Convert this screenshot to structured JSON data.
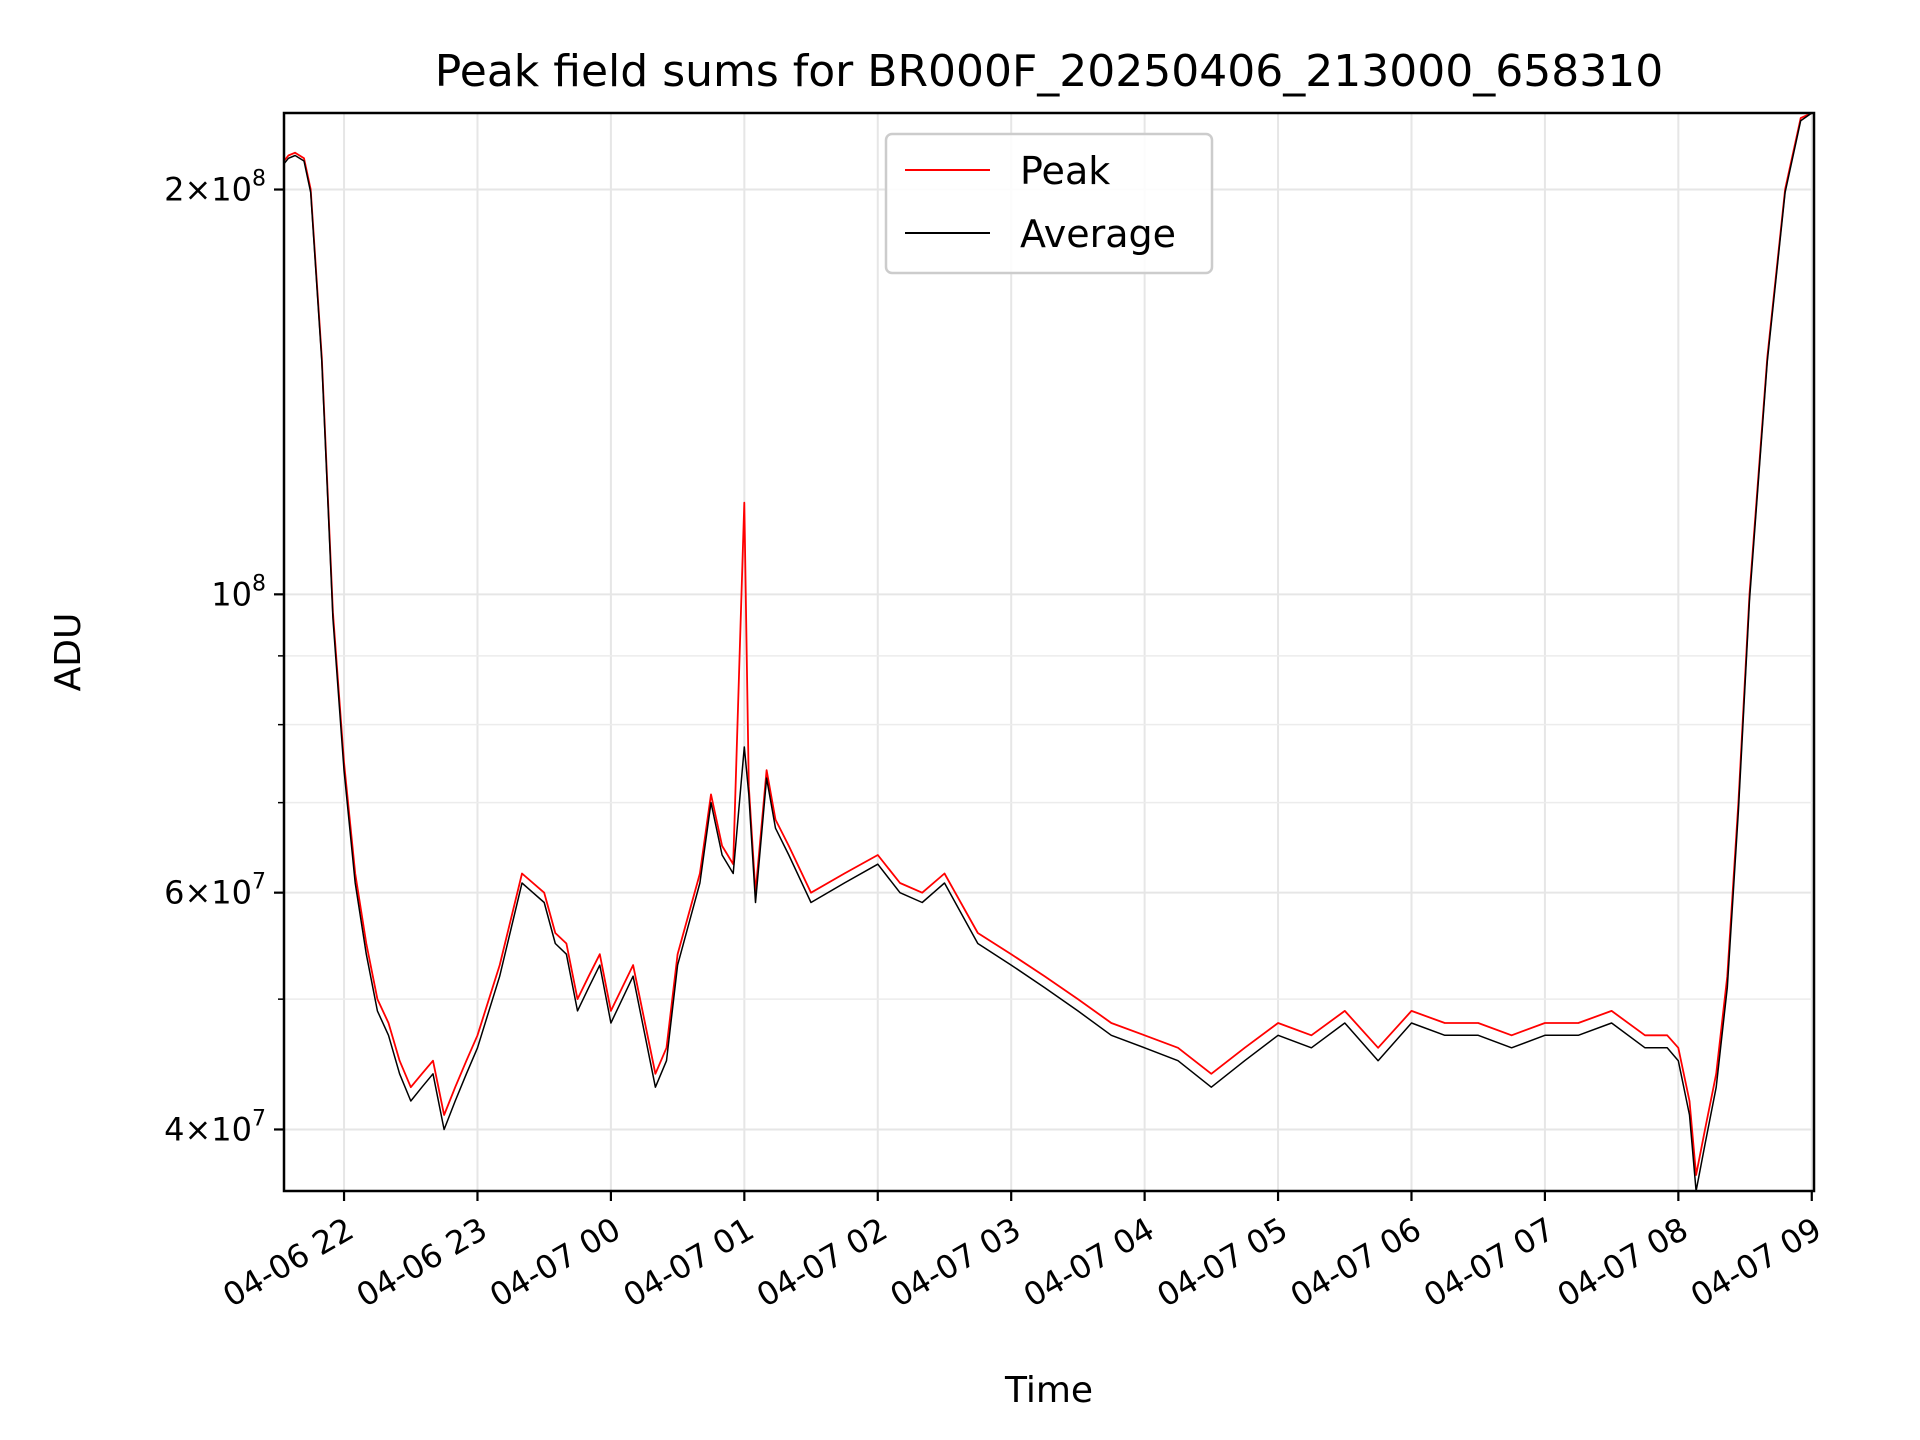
{
  "chart_data": {
    "type": "line",
    "title": "Peak field sums for BR000F_20250406_213000_658310",
    "xlabel": "Time",
    "ylabel": "ADU",
    "yscale": "log",
    "ylim": [
      36000000,
      228000000
    ],
    "xlim": [
      "04-06 21:33",
      "04-07 09:01"
    ],
    "grid": true,
    "legend_position": "top-center",
    "colors": {
      "Peak": "#ff0000",
      "Average": "#000000"
    },
    "x_ticks": [
      "04-06 22",
      "04-06 23",
      "04-07 00",
      "04-07 01",
      "04-07 02",
      "04-07 03",
      "04-07 04",
      "04-07 05",
      "04-07 06",
      "04-07 07",
      "04-07 08",
      "04-07 09"
    ],
    "y_ticks": [
      {
        "value": 40000000,
        "mantissa": "4",
        "exponent": "7"
      },
      {
        "value": 60000000,
        "mantissa": "6",
        "exponent": "7"
      },
      {
        "value": 100000000,
        "mantissa": "",
        "exponent": "8"
      },
      {
        "value": 200000000,
        "mantissa": "2",
        "exponent": "8"
      }
    ],
    "series": [
      {
        "name": "Peak",
        "x": [
          "04-06 21:33",
          "04-06 21:35",
          "04-06 21:38",
          "04-06 21:42",
          "04-06 21:45",
          "04-06 21:50",
          "04-06 21:55",
          "04-06 22:00",
          "04-06 22:05",
          "04-06 22:10",
          "04-06 22:15",
          "04-06 22:20",
          "04-06 22:25",
          "04-06 22:30",
          "04-06 22:35",
          "04-06 22:40",
          "04-06 22:45",
          "04-06 22:50",
          "04-06 22:55",
          "04-06 23:00",
          "04-06 23:10",
          "04-06 23:20",
          "04-06 23:30",
          "04-06 23:35",
          "04-06 23:40",
          "04-06 23:45",
          "04-06 23:50",
          "04-06 23:55",
          "04-07 00:00",
          "04-07 00:10",
          "04-07 00:20",
          "04-07 00:25",
          "04-07 00:30",
          "04-07 00:40",
          "04-07 00:45",
          "04-07 00:50",
          "04-07 00:55",
          "04-07 01:00",
          "04-07 01:02",
          "04-07 01:05",
          "04-07 01:10",
          "04-07 01:14",
          "04-07 01:20",
          "04-07 01:30",
          "04-07 01:45",
          "04-07 02:00",
          "04-07 02:10",
          "04-07 02:20",
          "04-07 02:30",
          "04-07 02:45",
          "04-07 03:00",
          "04-07 03:15",
          "04-07 03:30",
          "04-07 03:45",
          "04-07 04:00",
          "04-07 04:15",
          "04-07 04:30",
          "04-07 04:45",
          "04-07 05:00",
          "04-07 05:15",
          "04-07 05:30",
          "04-07 05:45",
          "04-07 06:00",
          "04-07 06:15",
          "04-07 06:30",
          "04-07 06:45",
          "04-07 07:00",
          "04-07 07:15",
          "04-07 07:30",
          "04-07 07:45",
          "04-07 07:55",
          "04-07 08:00",
          "04-07 08:05",
          "04-07 08:08",
          "04-07 08:12",
          "04-07 08:17",
          "04-07 08:22",
          "04-07 08:27",
          "04-07 08:32",
          "04-07 08:40",
          "04-07 08:48",
          "04-07 08:55",
          "04-07 09:00"
        ],
        "values": [
          210000000,
          212000000,
          213000000,
          211000000,
          200000000,
          150000000,
          97000000,
          75000000,
          62000000,
          55000000,
          50000000,
          48000000,
          45000000,
          43000000,
          44000000,
          45000000,
          41000000,
          43000000,
          45000000,
          47000000,
          53000000,
          62000000,
          60000000,
          56000000,
          55000000,
          50000000,
          52000000,
          54000000,
          49000000,
          53000000,
          44000000,
          46000000,
          54000000,
          62000000,
          71000000,
          65000000,
          63000000,
          117000000,
          72000000,
          60000000,
          74000000,
          68000000,
          65000000,
          60000000,
          62000000,
          64000000,
          61000000,
          60000000,
          62000000,
          56000000,
          54000000,
          52000000,
          50000000,
          48000000,
          47000000,
          46000000,
          44000000,
          46000000,
          48000000,
          47000000,
          49000000,
          46000000,
          49000000,
          48000000,
          48000000,
          47000000,
          48000000,
          48000000,
          49000000,
          47000000,
          47000000,
          46000000,
          42000000,
          37000000,
          40000000,
          44000000,
          52000000,
          70000000,
          100000000,
          150000000,
          200000000,
          226000000,
          228000000
        ]
      },
      {
        "name": "Average",
        "x": [
          "04-06 21:33",
          "04-06 21:35",
          "04-06 21:38",
          "04-06 21:42",
          "04-06 21:45",
          "04-06 21:50",
          "04-06 21:55",
          "04-06 22:00",
          "04-06 22:05",
          "04-06 22:10",
          "04-06 22:15",
          "04-06 22:20",
          "04-06 22:25",
          "04-06 22:30",
          "04-06 22:35",
          "04-06 22:40",
          "04-06 22:45",
          "04-06 22:50",
          "04-06 22:55",
          "04-06 23:00",
          "04-06 23:10",
          "04-06 23:20",
          "04-06 23:30",
          "04-06 23:35",
          "04-06 23:40",
          "04-06 23:45",
          "04-06 23:50",
          "04-06 23:55",
          "04-07 00:00",
          "04-07 00:10",
          "04-07 00:20",
          "04-07 00:25",
          "04-07 00:30",
          "04-07 00:40",
          "04-07 00:45",
          "04-07 00:50",
          "04-07 00:55",
          "04-07 01:00",
          "04-07 01:02",
          "04-07 01:05",
          "04-07 01:10",
          "04-07 01:14",
          "04-07 01:20",
          "04-07 01:30",
          "04-07 01:45",
          "04-07 02:00",
          "04-07 02:10",
          "04-07 02:20",
          "04-07 02:30",
          "04-07 02:45",
          "04-07 03:00",
          "04-07 03:15",
          "04-07 03:30",
          "04-07 03:45",
          "04-07 04:00",
          "04-07 04:15",
          "04-07 04:30",
          "04-07 04:45",
          "04-07 05:00",
          "04-07 05:15",
          "04-07 05:30",
          "04-07 05:45",
          "04-07 06:00",
          "04-07 06:15",
          "04-07 06:30",
          "04-07 06:45",
          "04-07 07:00",
          "04-07 07:15",
          "04-07 07:30",
          "04-07 07:45",
          "04-07 07:55",
          "04-07 08:00",
          "04-07 08:05",
          "04-07 08:08",
          "04-07 08:12",
          "04-07 08:17",
          "04-07 08:22",
          "04-07 08:27",
          "04-07 08:32",
          "04-07 08:40",
          "04-07 08:48",
          "04-07 08:55",
          "04-07 09:00"
        ],
        "values": [
          209000000,
          211000000,
          212000000,
          210000000,
          199000000,
          149000000,
          96000000,
          74000000,
          61000000,
          54000000,
          49000000,
          47000000,
          44000000,
          42000000,
          43000000,
          44000000,
          40000000,
          42000000,
          44000000,
          46000000,
          52000000,
          61000000,
          59000000,
          55000000,
          54000000,
          49000000,
          51000000,
          53000000,
          48000000,
          52000000,
          43000000,
          45000000,
          53000000,
          61000000,
          70000000,
          64000000,
          62000000,
          77000000,
          71000000,
          59000000,
          73000000,
          67000000,
          64000000,
          59000000,
          61000000,
          63000000,
          60000000,
          59000000,
          61000000,
          55000000,
          53000000,
          51000000,
          49000000,
          47000000,
          46000000,
          45000000,
          43000000,
          45000000,
          47000000,
          46000000,
          48000000,
          45000000,
          48000000,
          47000000,
          47000000,
          46000000,
          47000000,
          47000000,
          48000000,
          46000000,
          46000000,
          45000000,
          41000000,
          36000000,
          39000000,
          43000000,
          51000000,
          69000000,
          99000000,
          149000000,
          199000000,
          225000000,
          228000000
        ]
      }
    ]
  }
}
